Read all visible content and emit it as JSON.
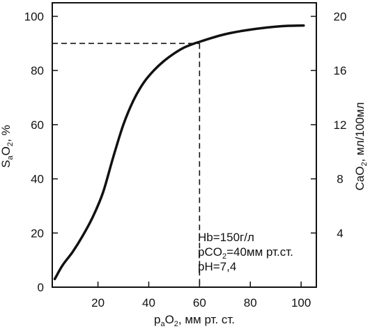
{
  "chart_data": {
    "type": "line",
    "title": "",
    "x_axis": {
      "label_parts": [
        "p",
        "a",
        "O",
        "2",
        ", мм рт. ст."
      ],
      "ticks": [
        20,
        40,
        60,
        80,
        100
      ],
      "range": [
        2,
        106
      ]
    },
    "y_axis_left": {
      "label_parts": [
        "S",
        "a",
        "O",
        "2",
        ", %"
      ],
      "ticks": [
        0,
        20,
        40,
        60,
        80,
        100
      ],
      "range": [
        0,
        105
      ]
    },
    "y_axis_right": {
      "label_parts": [
        "CaO",
        "2",
        ", мл/100мл"
      ],
      "ticks": [
        4,
        8,
        12,
        16,
        20
      ],
      "range": [
        0,
        21
      ]
    },
    "grid": false,
    "series": [
      {
        "x": [
          3,
          6,
          10,
          14,
          18,
          22,
          26,
          30,
          34,
          38,
          42,
          46,
          50,
          54,
          58,
          60,
          64,
          68,
          72,
          76,
          80,
          85,
          90,
          95,
          100,
          101
        ],
        "y": [
          3,
          8,
          13,
          19,
          26,
          35,
          48,
          60,
          69,
          75.5,
          80,
          83.5,
          86.3,
          88.5,
          90,
          90.6,
          91.8,
          92.9,
          93.8,
          94.5,
          95.1,
          95.7,
          96.2,
          96.5,
          96.6,
          96.6
        ]
      }
    ],
    "reference_point": {
      "x": 60,
      "y": 90
    },
    "annotation": {
      "line1": "Hb=150г/л",
      "line2_parts": [
        "pCO",
        "2",
        "=40мм рт.ст."
      ],
      "line3": "pH=7,4"
    }
  }
}
